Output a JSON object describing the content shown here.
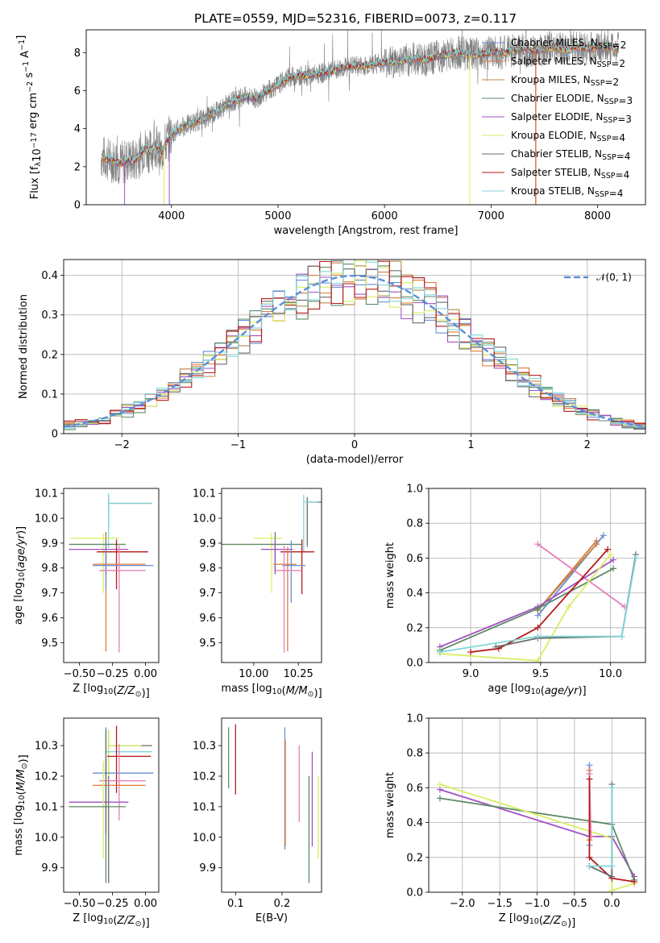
{
  "title": "PLATE=0559, MJD=52316, FIBERID=0073, z=0.117",
  "colors": {
    "chabrier_miles": "#6a8fd6",
    "salpeter_miles": "#e07b39",
    "kroupa_miles": "#b8874a",
    "chabrier_elodie": "#5f8a68",
    "salpeter_elodie": "#a24fc4",
    "kroupa_elodie": "#d7ee63",
    "chabrier_stelib": "#6b6b6b",
    "salpeter_stelib": "#b51a1a",
    "kroupa_stelib": "#7fd6d8",
    "extra_pink": "#e57fb8",
    "data_gray": "#808080",
    "normal_curve": "#5b8ed9"
  },
  "chart_data": [
    {
      "id": "spectrum",
      "type": "line",
      "xlabel": "wavelength [Angstrom, rest frame]",
      "ylabel": "Flux [f_λ 10^-17 erg cm^-2 s^-1 A^-1]",
      "xlim": [
        3200,
        8450
      ],
      "ylim": [
        0,
        9.2
      ],
      "xticks": [
        4000,
        5000,
        6000,
        7000,
        8000
      ],
      "yticks": [
        0,
        2,
        4,
        6,
        8
      ],
      "grid": false,
      "legend_position": "top-right",
      "trend": {
        "x": [
          3350,
          3400,
          3450,
          3500,
          3550,
          3600,
          3650,
          3700,
          3750,
          3800,
          3850,
          3900,
          3950,
          4000,
          4100,
          4200,
          4300,
          4400,
          4500,
          4600,
          4700,
          4800,
          4900,
          5000,
          5100,
          5200,
          5300,
          5400,
          5500,
          5600,
          5700,
          5800,
          5900,
          6000,
          6100,
          6200,
          6300,
          6400,
          6500,
          6600,
          6700,
          6800,
          6900,
          7000,
          7100,
          7200,
          7300,
          7400,
          7500,
          7600,
          7700,
          7800,
          7900,
          8000,
          8100,
          8200
        ],
        "y": [
          2.5,
          2.4,
          2.3,
          2.2,
          2.2,
          2.4,
          2.3,
          2.6,
          3.0,
          2.8,
          3.2,
          2.6,
          3.3,
          3.7,
          4.1,
          4.3,
          4.5,
          4.8,
          5.2,
          5.5,
          5.7,
          5.6,
          6.0,
          6.3,
          6.7,
          6.8,
          6.8,
          6.9,
          7.0,
          7.2,
          7.3,
          7.3,
          7.4,
          7.5,
          7.5,
          7.6,
          7.7,
          7.6,
          7.8,
          7.9,
          8.0,
          7.9,
          7.9,
          8.0,
          8.0,
          8.1,
          8.2,
          8.1,
          8.2,
          8.3,
          8.1,
          8.3,
          8.2,
          8.3,
          8.3,
          8.2
        ]
      },
      "series": [
        {
          "name": "Chabrier MILES, N_SSP=2",
          "color_key": "chabrier_miles"
        },
        {
          "name": "Salpeter MILES, N_SSP=2",
          "color_key": "salpeter_miles"
        },
        {
          "name": "Kroupa MILES, N_SSP=2",
          "color_key": "kroupa_miles"
        },
        {
          "name": "Chabrier ELODIE, N_SSP=3",
          "color_key": "chabrier_elodie"
        },
        {
          "name": "Salpeter ELODIE, N_SSP=3",
          "color_key": "salpeter_elodie"
        },
        {
          "name": "Kroupa ELODIE, N_SSP=4",
          "color_key": "kroupa_elodie"
        },
        {
          "name": "Chabrier STELIB, N_SSP=4",
          "color_key": "chabrier_stelib"
        },
        {
          "name": "Salpeter STELIB, N_SSP=4",
          "color_key": "salpeter_stelib"
        },
        {
          "name": "Kroupa STELIB, N_SSP=4",
          "color_key": "kroupa_stelib"
        }
      ]
    },
    {
      "id": "residuals",
      "type": "line",
      "xlabel": "(data-model)/error",
      "ylabel": "Normed distribution",
      "xlim": [
        -2.5,
        2.5
      ],
      "ylim": [
        0,
        0.44
      ],
      "xticks": [
        -2,
        -1,
        0,
        1,
        2
      ],
      "yticks": [
        0.0,
        0.1,
        0.2,
        0.3,
        0.4
      ],
      "grid": true,
      "legend_position": "top-right",
      "legend": "𝒩(0, 1)",
      "bin_width": 0.1
    },
    {
      "id": "age_vs_Z",
      "type": "scatter",
      "xlabel": "Z [log10(Z/Z⊙)]",
      "ylabel": "age  [log10(age/yr)]",
      "xlim": [
        -0.62,
        0.1
      ],
      "ylim": [
        9.42,
        10.12
      ],
      "xticks": [
        -0.5,
        -0.25,
        0.0
      ],
      "yticks": [
        9.5,
        9.6,
        9.7,
        9.8,
        9.9,
        10.0,
        10.1
      ],
      "errorbars": [
        {
          "x": -0.28,
          "y": 10.06,
          "xerr": [
            0.0,
            0.33
          ],
          "yerr": [
            0.1,
            0.03
          ],
          "color_key": "chabrier_stelib"
        },
        {
          "x": -0.28,
          "y": 10.06,
          "xerr": [
            0.0,
            0.33
          ],
          "yerr": [
            0.18,
            0.04
          ],
          "color_key": "kroupa_stelib"
        },
        {
          "x": -0.32,
          "y": 9.92,
          "xerr": [
            0.25,
            0.12
          ],
          "yerr": [
            0.22,
            0.02
          ],
          "color_key": "kroupa_elodie"
        },
        {
          "x": -0.3,
          "y": 9.895,
          "xerr": [
            0.28,
            0.15
          ],
          "yerr": [
            0.13,
            0.05
          ],
          "color_key": "chabrier_elodie"
        },
        {
          "x": -0.3,
          "y": 9.875,
          "xerr": [
            0.28,
            0.17
          ],
          "yerr": [
            0.1,
            0.04
          ],
          "color_key": "salpeter_elodie"
        },
        {
          "x": -0.22,
          "y": 9.865,
          "xerr": [
            0.15,
            0.24
          ],
          "yerr": [
            0.15,
            0.05
          ],
          "color_key": "salpeter_stelib"
        },
        {
          "x": -0.3,
          "y": 9.815,
          "xerr": [
            0.1,
            0.3
          ],
          "yerr": [
            0.35,
            0.12
          ],
          "color_key": "salpeter_miles"
        },
        {
          "x": -0.3,
          "y": 9.81,
          "xerr": [
            0.1,
            0.36
          ],
          "yerr": [
            0.1,
            0.1
          ],
          "color_key": "chabrier_miles"
        },
        {
          "x": -0.2,
          "y": 9.79,
          "xerr": [
            0.15,
            0.2
          ],
          "yerr": [
            0.33,
            0.1
          ],
          "color_key": "extra_pink"
        }
      ]
    },
    {
      "id": "age_vs_mass",
      "type": "scatter",
      "xlabel": "mass [log10(M/M⊙)]",
      "ylabel": "",
      "xlim": [
        9.82,
        10.38
      ],
      "ylim": [
        9.42,
        10.12
      ],
      "xticks": [
        10.0,
        10.25
      ],
      "yticks": [
        9.5,
        9.6,
        9.7,
        9.8,
        9.9,
        10.0,
        10.1
      ],
      "errorbars": [
        {
          "x": 10.3,
          "y": 10.065,
          "xerr": [
            0.0,
            0.08
          ],
          "yerr": [
            0.18,
            0.02
          ],
          "color_key": "chabrier_stelib"
        },
        {
          "x": 10.28,
          "y": 10.065,
          "xerr": [
            0.0,
            0.08
          ],
          "yerr": [
            0.2,
            0.03
          ],
          "color_key": "kroupa_stelib"
        },
        {
          "x": 10.1,
          "y": 9.92,
          "xerr": [
            0.1,
            0.06
          ],
          "yerr": [
            0.22,
            0.02
          ],
          "color_key": "kroupa_elodie"
        },
        {
          "x": 10.12,
          "y": 9.895,
          "xerr": [
            0.3,
            0.15
          ],
          "yerr": [
            0.12,
            0.05
          ],
          "color_key": "chabrier_elodie"
        },
        {
          "x": 10.12,
          "y": 9.875,
          "xerr": [
            0.08,
            0.1
          ],
          "yerr": [
            0.1,
            0.04
          ],
          "color_key": "salpeter_elodie"
        },
        {
          "x": 10.27,
          "y": 9.865,
          "xerr": [
            0.12,
            0.07
          ],
          "yerr": [
            0.17,
            0.05
          ],
          "color_key": "salpeter_stelib"
        },
        {
          "x": 10.19,
          "y": 9.815,
          "xerr": [
            0.08,
            0.05
          ],
          "yerr": [
            0.35,
            0.07
          ],
          "color_key": "salpeter_miles"
        },
        {
          "x": 10.21,
          "y": 9.81,
          "xerr": [
            0.05,
            0.08
          ],
          "yerr": [
            0.15,
            0.1
          ],
          "color_key": "chabrier_miles"
        },
        {
          "x": 10.17,
          "y": 9.79,
          "xerr": [
            0.05,
            0.1
          ],
          "yerr": [
            0.33,
            0.1
          ],
          "color_key": "extra_pink"
        }
      ]
    },
    {
      "id": "weight_vs_age",
      "type": "line",
      "xlabel": "age  [log10(age/yr)]",
      "ylabel": "mass weight",
      "xlim": [
        8.7,
        10.25
      ],
      "ylim": [
        0,
        1
      ],
      "xticks": [
        9.0,
        9.5,
        10.0
      ],
      "yticks": [
        0.0,
        0.2,
        0.4,
        0.6,
        0.8,
        1.0
      ],
      "grid": true,
      "series": [
        {
          "color_key": "salpeter_miles",
          "x": [
            9.48,
            9.9
          ],
          "y": [
            0.3,
            0.7
          ]
        },
        {
          "color_key": "chabrier_miles",
          "x": [
            9.48,
            9.95
          ],
          "y": [
            0.27,
            0.73
          ]
        },
        {
          "color_key": "kroupa_miles",
          "x": [
            9.48,
            9.9
          ],
          "y": [
            0.3,
            0.68
          ]
        },
        {
          "color_key": "extra_pink",
          "x": [
            9.48,
            10.1
          ],
          "y": [
            0.68,
            0.32
          ]
        },
        {
          "color_key": "salpeter_elodie",
          "x": [
            8.78,
            9.48,
            10.02
          ],
          "y": [
            0.09,
            0.32,
            0.59
          ]
        },
        {
          "color_key": "chabrier_elodie",
          "x": [
            8.78,
            9.48,
            10.02
          ],
          "y": [
            0.07,
            0.31,
            0.54
          ]
        },
        {
          "color_key": "kroupa_elodie",
          "x": [
            8.78,
            9.48,
            9.7,
            10.0
          ],
          "y": [
            0.05,
            0.01,
            0.32,
            0.62
          ]
        },
        {
          "color_key": "salpeter_stelib",
          "x": [
            9.0,
            9.2,
            9.48,
            9.98
          ],
          "y": [
            0.06,
            0.08,
            0.2,
            0.65
          ]
        },
        {
          "color_key": "chabrier_stelib",
          "x": [
            9.18,
            9.48,
            10.08,
            10.18
          ],
          "y": [
            0.09,
            0.14,
            0.15,
            0.62
          ]
        },
        {
          "color_key": "kroupa_stelib",
          "x": [
            8.78,
            9.48,
            10.08,
            10.18
          ],
          "y": [
            0.06,
            0.15,
            0.15,
            0.6
          ]
        }
      ]
    },
    {
      "id": "mass_vs_Z",
      "type": "scatter",
      "xlabel": "Z [log10(Z/Z⊙)]",
      "ylabel": "mass [log10(M/M⊙)]",
      "xlim": [
        -0.62,
        0.1
      ],
      "ylim": [
        9.82,
        10.39
      ],
      "xticks": [
        -0.5,
        -0.25,
        0.0
      ],
      "yticks": [
        9.9,
        10.0,
        10.1,
        10.2,
        10.3
      ],
      "errorbars": [
        {
          "x": -0.28,
          "y": 10.3,
          "xerr": [
            0.0,
            0.33
          ],
          "yerr": [
            0.45,
            0.05
          ],
          "color_key": "chabrier_stelib"
        },
        {
          "x": -0.28,
          "y": 10.3,
          "xerr": [
            0.0,
            0.25
          ],
          "yerr": [
            0.1,
            0.05
          ],
          "color_key": "kroupa_elodie"
        },
        {
          "x": -0.3,
          "y": 10.28,
          "xerr": [
            0.0,
            0.35
          ],
          "yerr": [
            0.1,
            0.07
          ],
          "color_key": "kroupa_stelib"
        },
        {
          "x": -0.22,
          "y": 10.265,
          "xerr": [
            0.07,
            0.26
          ],
          "yerr": [
            0.12,
            0.1
          ],
          "color_key": "salpeter_stelib"
        },
        {
          "x": -0.3,
          "y": 10.21,
          "xerr": [
            0.1,
            0.36
          ],
          "yerr": [
            0.2,
            0.15
          ],
          "color_key": "chabrier_miles"
        },
        {
          "x": -0.2,
          "y": 10.185,
          "xerr": [
            0.15,
            0.2
          ],
          "yerr": [
            0.13,
            0.12
          ],
          "color_key": "extra_pink"
        },
        {
          "x": -0.3,
          "y": 10.17,
          "xerr": [
            0.1,
            0.3
          ],
          "yerr": [
            0.15,
            0.16
          ],
          "color_key": "salpeter_miles"
        },
        {
          "x": -0.3,
          "y": 10.115,
          "xerr": [
            0.28,
            0.17
          ],
          "yerr": [
            0.1,
            0.15
          ],
          "color_key": "salpeter_elodie"
        },
        {
          "x": -0.32,
          "y": 10.1,
          "xerr": [
            0.25,
            0.12
          ],
          "yerr": [
            0.17,
            0.15
          ],
          "color_key": "kroupa_elodie"
        },
        {
          "x": -0.3,
          "y": 10.1,
          "xerr": [
            0.28,
            0.15
          ],
          "yerr": [
            0.25,
            0.25
          ],
          "color_key": "chabrier_elodie"
        }
      ]
    },
    {
      "id": "mass_vs_ebv",
      "type": "scatter",
      "xlabel": "E(B-V)",
      "ylabel": "",
      "xlim": [
        0.07,
        0.285
      ],
      "ylim": [
        9.82,
        10.39
      ],
      "xticks": [
        0.1,
        0.2
      ],
      "yticks": [
        9.9,
        10.0,
        10.1,
        10.2,
        10.3
      ],
      "errorbars": [
        {
          "x": 0.085,
          "y": 10.26,
          "yerr": [
            0.1,
            0.1
          ],
          "color_key": "chabrier_elodie"
        },
        {
          "x": 0.1,
          "y": 10.26,
          "yerr": [
            0.12,
            0.11
          ],
          "color_key": "salpeter_stelib"
        },
        {
          "x": 0.206,
          "y": 10.18,
          "yerr": [
            0.22,
            0.18
          ],
          "color_key": "chabrier_miles"
        },
        {
          "x": 0.207,
          "y": 10.15,
          "yerr": [
            0.18,
            0.17
          ],
          "color_key": "salpeter_miles"
        },
        {
          "x": 0.237,
          "y": 10.18,
          "yerr": [
            0.13,
            0.12
          ],
          "color_key": "extra_pink"
        },
        {
          "x": 0.258,
          "y": 10.03,
          "yerr": [
            0.18,
            0.17
          ],
          "color_key": "chabrier_elodie"
        },
        {
          "x": 0.265,
          "y": 10.12,
          "yerr": [
            0.15,
            0.16
          ],
          "color_key": "salpeter_elodie"
        },
        {
          "x": 0.278,
          "y": 10.06,
          "yerr": [
            0.13,
            0.14
          ],
          "color_key": "kroupa_elodie"
        }
      ]
    },
    {
      "id": "weight_vs_Z",
      "type": "line",
      "xlabel": "Z [log10(Z/Z⊙)]",
      "ylabel": "mass weight",
      "xlim": [
        -2.45,
        0.45
      ],
      "ylim": [
        0,
        1
      ],
      "xticks": [
        -2.0,
        -1.5,
        -1.0,
        -0.5,
        0.0
      ],
      "yticks": [
        0.0,
        0.2,
        0.4,
        0.6,
        0.8,
        1.0
      ],
      "grid": true,
      "series": [
        {
          "color_key": "salpeter_elodie",
          "x": [
            -2.3,
            -0.3,
            0.0,
            0.3
          ],
          "y": [
            0.59,
            0.32,
            0.32,
            0.09
          ]
        },
        {
          "color_key": "chabrier_elodie",
          "x": [
            -2.3,
            0.0,
            0.3
          ],
          "y": [
            0.54,
            0.39,
            0.07
          ]
        },
        {
          "color_key": "kroupa_elodie",
          "x": [
            -2.3,
            0.0,
            0.0,
            0.3
          ],
          "y": [
            0.62,
            0.31,
            0.01,
            0.05
          ]
        },
        {
          "color_key": "chabrier_miles",
          "x": [
            -0.3,
            -0.3
          ],
          "y": [
            0.27,
            0.73
          ]
        },
        {
          "color_key": "salpeter_miles",
          "x": [
            -0.3,
            -0.3
          ],
          "y": [
            0.3,
            0.7
          ]
        },
        {
          "color_key": "extra_pink",
          "x": [
            -0.3,
            -0.28
          ],
          "y": [
            0.68,
            0.32
          ]
        },
        {
          "color_key": "salpeter_stelib",
          "x": [
            -0.3,
            -0.3,
            0.0,
            0.3
          ],
          "y": [
            0.65,
            0.2,
            0.08,
            0.06
          ]
        },
        {
          "color_key": "chabrier_stelib",
          "x": [
            -0.3,
            0.0,
            0.0
          ],
          "y": [
            0.15,
            0.09,
            0.62
          ]
        },
        {
          "color_key": "kroupa_stelib",
          "x": [
            -0.3,
            0.0,
            0.0
          ],
          "y": [
            0.15,
            0.15,
            0.6
          ]
        }
      ]
    }
  ]
}
